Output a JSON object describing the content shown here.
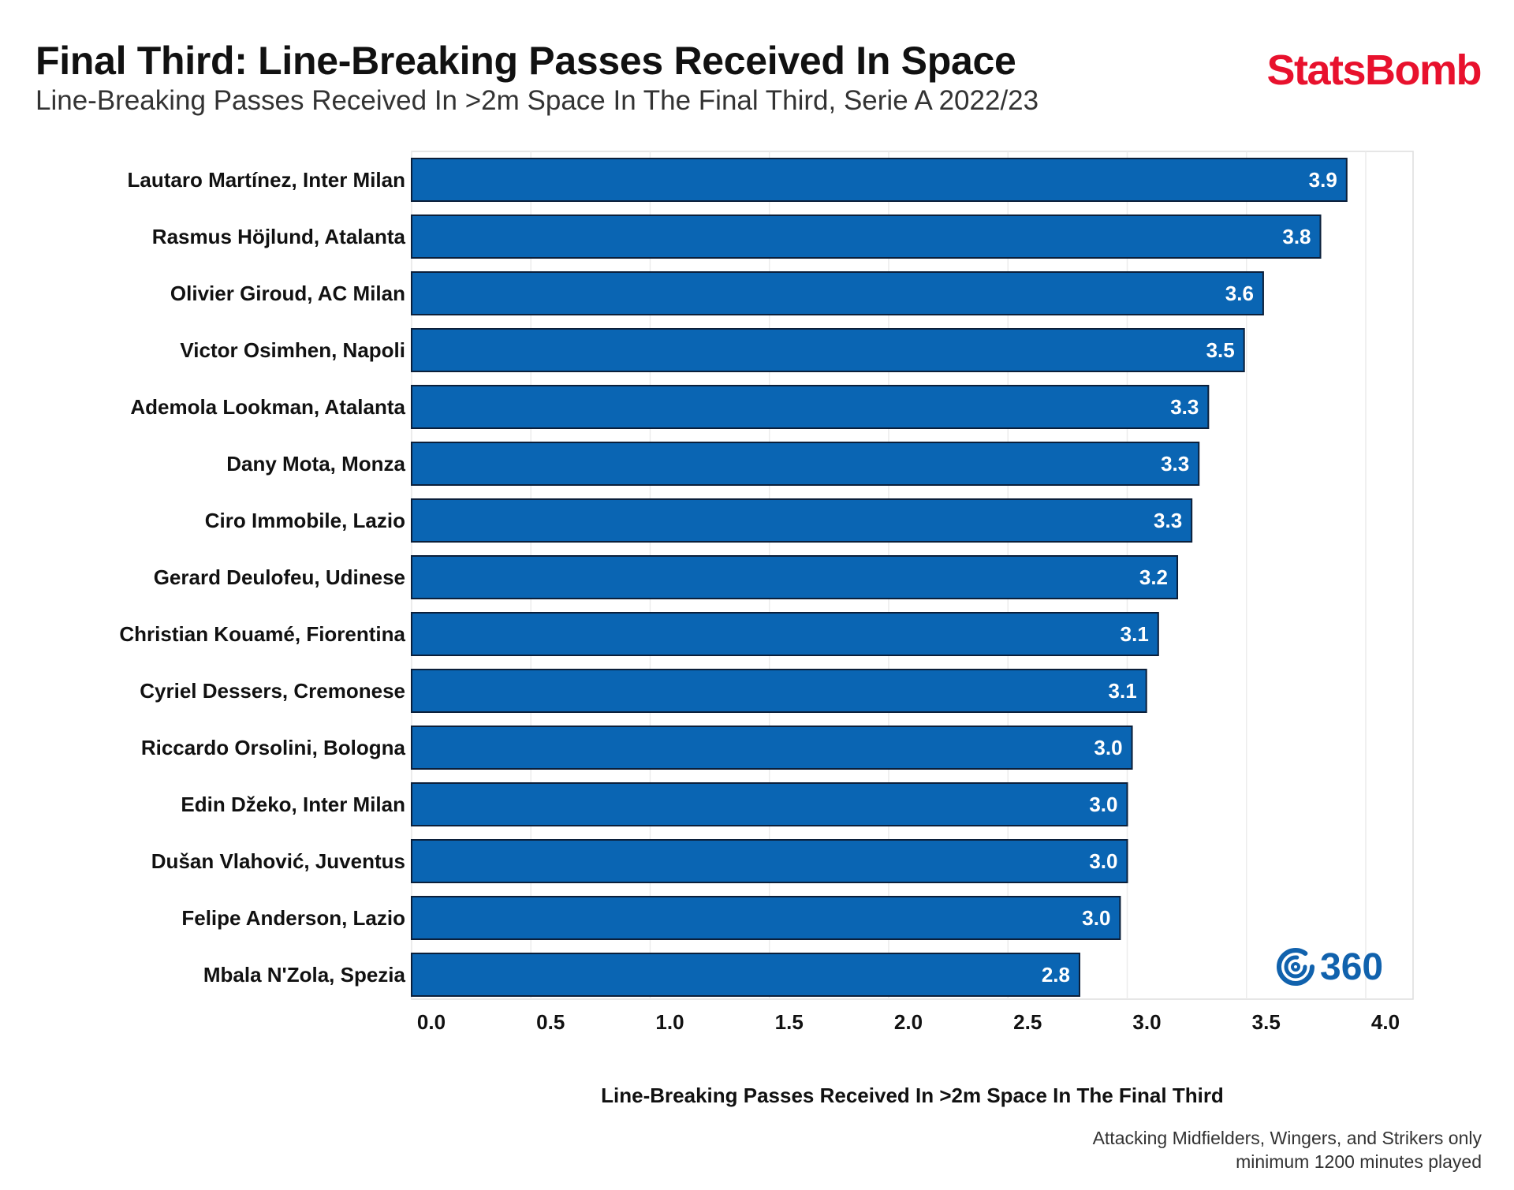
{
  "title": "Final Third: Line-Breaking Passes Received In Space",
  "subtitle": "Line-Breaking Passes Received In >2m Space In The Final Third, Serie A 2022/23",
  "brand": "StatsBomb",
  "badge_text": "360",
  "badge_icon": "statsbomb-360-icon",
  "note_line1": "Attacking Midfielders, Wingers, and Strikers only",
  "note_line2": "minimum 1200 minutes played",
  "colors": {
    "bar": "#0a65b3",
    "bar_edge": "#0b1f3a",
    "brand": "#e8112d",
    "badge": "#1162ad"
  },
  "chart_data": {
    "type": "bar",
    "orientation": "horizontal",
    "title": "Final Third: Line-Breaking Passes Received In Space",
    "xlabel": "Line-Breaking Passes Received In >2m Space In The Final Third",
    "ylabel": "",
    "xlim": [
      0,
      4.1
    ],
    "xticks": [
      0.0,
      0.5,
      1.0,
      1.5,
      2.0,
      2.5,
      3.0,
      3.5,
      4.0
    ],
    "xtick_labels": [
      "0.0",
      "0.5",
      "1.0",
      "1.5",
      "2.0",
      "2.5",
      "3.0",
      "3.5",
      "4.0"
    ],
    "grid": true,
    "categories": [
      "Lautaro Martínez, Inter Milan",
      "Rasmus Höjlund, Atalanta",
      "Olivier Giroud, AC Milan",
      "Victor Osimhen, Napoli",
      "Ademola Lookman, Atalanta",
      "Dany Mota, Monza",
      "Ciro Immobile, Lazio",
      "Gerard Deulofeu, Udinese",
      "Christian Kouamé, Fiorentina",
      "Cyriel Dessers, Cremonese",
      "Riccardo Orsolini, Bologna",
      "Edin Džeko, Inter Milan",
      "Dušan Vlahović, Juventus",
      "Felipe Anderson, Lazio",
      "Mbala N'Zola, Spezia"
    ],
    "values": [
      3.92,
      3.81,
      3.57,
      3.49,
      3.34,
      3.3,
      3.27,
      3.21,
      3.13,
      3.08,
      3.02,
      3.0,
      3.0,
      2.97,
      2.8
    ],
    "value_labels": [
      "3.9",
      "3.8",
      "3.6",
      "3.5",
      "3.3",
      "3.3",
      "3.3",
      "3.2",
      "3.1",
      "3.1",
      "3.0",
      "3.0",
      "3.0",
      "3.0",
      "2.8"
    ]
  }
}
